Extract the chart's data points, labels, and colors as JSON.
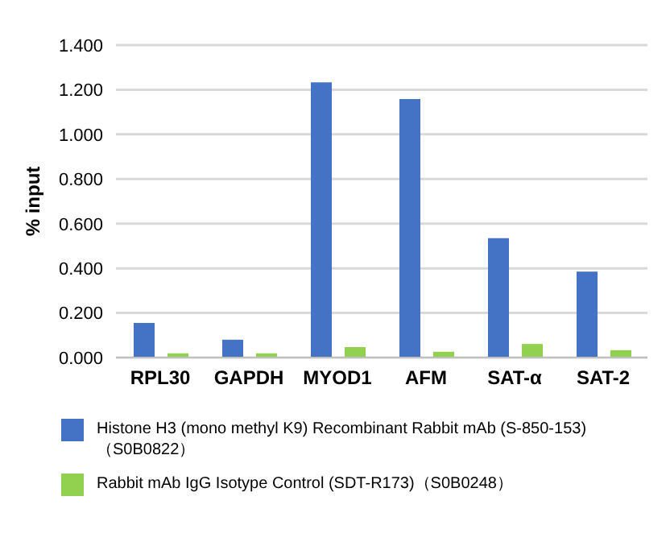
{
  "chart_data": {
    "type": "bar",
    "ylabel": "% input",
    "categories": [
      "RPL30",
      "GAPDH",
      "MYOD1",
      "AFM",
      "SAT-α",
      "SAT-2"
    ],
    "series": [
      {
        "name": "Histone H3 (mono methyl K9) Recombinant Rabbit mAb (S-850-153)（S0B0822）",
        "color": "#4472c4",
        "values": [
          0.155,
          0.08,
          1.233,
          1.158,
          0.535,
          0.385
        ]
      },
      {
        "name": "Rabbit mAb IgG Isotype Control (SDT-R173)（S0B0248）",
        "color": "#92d050",
        "values": [
          0.019,
          0.019,
          0.047,
          0.026,
          0.061,
          0.033
        ]
      }
    ],
    "ylim": [
      0,
      1.4
    ],
    "yticks": [
      {
        "value": 0,
        "label": "0.000"
      },
      {
        "value": 0.2,
        "label": "0.200"
      },
      {
        "value": 0.4,
        "label": "0.400"
      },
      {
        "value": 0.6,
        "label": "0.600"
      },
      {
        "value": 0.8,
        "label": "0.800"
      },
      {
        "value": 1,
        "label": "1.000"
      },
      {
        "value": 1.2,
        "label": "1.200"
      },
      {
        "value": 1.4,
        "label": "1.400"
      }
    ],
    "grid": "y",
    "legend": "bottom"
  }
}
